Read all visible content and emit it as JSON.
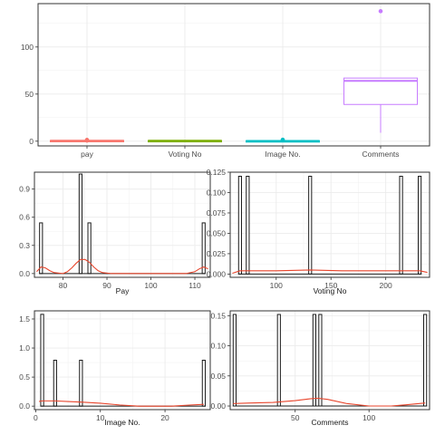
{
  "chart_data": [
    {
      "type": "boxplot",
      "categories": [
        "pay",
        "Voting No",
        "Image No.",
        "Comments"
      ],
      "colors": [
        "#f8766d",
        "#7cae00",
        "#00bfc4",
        "#c77cff"
      ],
      "boxes": [
        {
          "min": 0,
          "q1": 0.2,
          "median": 0.5,
          "q3": 0.8,
          "max": 1.1,
          "outliers": [
            0.6,
            1.1,
            1.4
          ]
        },
        {
          "min": 0.2,
          "q1": 0.3,
          "median": 0.5,
          "q3": 0.7,
          "max": 0.8,
          "outliers": []
        },
        {
          "min": 0,
          "q1": 0.1,
          "median": 0.3,
          "q3": 0.5,
          "max": 0.7,
          "outliers": [
            1.6
          ]
        },
        {
          "min": 9,
          "q1": 39,
          "median": 64,
          "q3": 67,
          "max": 67,
          "outliers": [
            138
          ]
        }
      ],
      "ylim": [
        -5,
        146
      ],
      "yticks": [
        0,
        50,
        100
      ],
      "grid": true
    },
    {
      "type": "histogram",
      "xlabel": "Pay",
      "xlim": [
        73.5,
        113.5
      ],
      "ylim": [
        -0.04,
        1.08
      ],
      "xticks": [
        80,
        90,
        100,
        110
      ],
      "yticks": [
        0.0,
        0.3,
        0.6,
        0.9
      ],
      "yticklabels": [
        "0.0",
        "0.3",
        "0.6",
        "0.9"
      ],
      "bars": [
        {
          "x": 75,
          "value": 0.54
        },
        {
          "x": 84,
          "value": 1.06
        },
        {
          "x": 86,
          "value": 0.54
        },
        {
          "x": 112,
          "value": 0.54
        }
      ],
      "density": [
        [
          74,
          0.02
        ],
        [
          75,
          0.07
        ],
        [
          76,
          0.06
        ],
        [
          77,
          0.03
        ],
        [
          78,
          0.01
        ],
        [
          80,
          0.0
        ],
        [
          81,
          0.02
        ],
        [
          82,
          0.06
        ],
        [
          83,
          0.11
        ],
        [
          84,
          0.15
        ],
        [
          85,
          0.15
        ],
        [
          86,
          0.12
        ],
        [
          87,
          0.07
        ],
        [
          88,
          0.03
        ],
        [
          89,
          0.01
        ],
        [
          91,
          0.0
        ],
        [
          108,
          0.0
        ],
        [
          110,
          0.02
        ],
        [
          111,
          0.05
        ],
        [
          112,
          0.07
        ],
        [
          113,
          0.05
        ]
      ]
    },
    {
      "type": "histogram",
      "xlabel": "Voting No",
      "xlim": [
        58,
        240
      ],
      "ylim": [
        -0.004,
        0.125
      ],
      "xticks": [
        100,
        150,
        200
      ],
      "yticks": [
        0.0,
        0.025,
        0.05,
        0.075,
        0.1,
        0.125
      ],
      "yticklabels": [
        "0.000",
        "0.025",
        "0.050",
        "0.075",
        "0.100",
        "0.125"
      ],
      "bars": [
        {
          "x": 67,
          "value": 0.12
        },
        {
          "x": 74,
          "value": 0.12
        },
        {
          "x": 131,
          "value": 0.12
        },
        {
          "x": 214,
          "value": 0.12
        },
        {
          "x": 231,
          "value": 0.12
        }
      ],
      "density": [
        [
          60,
          0.001
        ],
        [
          67,
          0.004
        ],
        [
          80,
          0.004
        ],
        [
          100,
          0.004
        ],
        [
          131,
          0.005
        ],
        [
          160,
          0.004
        ],
        [
          200,
          0.004
        ],
        [
          214,
          0.004
        ],
        [
          231,
          0.004
        ],
        [
          238,
          0.002
        ]
      ]
    },
    {
      "type": "histogram",
      "xlabel": "Image No.",
      "xlim": [
        -0.2,
        27
      ],
      "ylim": [
        -0.06,
        1.64
      ],
      "xticks": [
        0,
        10,
        20
      ],
      "yticks": [
        0.0,
        0.5,
        1.0,
        1.5
      ],
      "yticklabels": [
        "0.0",
        "0.5",
        "1.0",
        "1.5"
      ],
      "bars": [
        {
          "x": 1,
          "value": 1.58
        },
        {
          "x": 3,
          "value": 0.79
        },
        {
          "x": 7,
          "value": 0.79
        },
        {
          "x": 26,
          "value": 0.79
        }
      ],
      "density": [
        [
          0.5,
          0.08
        ],
        [
          1,
          0.09
        ],
        [
          3,
          0.09
        ],
        [
          5,
          0.08
        ],
        [
          7,
          0.07
        ],
        [
          10,
          0.05
        ],
        [
          13,
          0.02
        ],
        [
          16,
          0.0
        ],
        [
          21,
          0.0
        ],
        [
          24,
          0.02
        ],
        [
          26,
          0.03
        ]
      ]
    },
    {
      "type": "histogram",
      "xlabel": "Comments",
      "xlim": [
        6,
        141
      ],
      "ylim": [
        -0.006,
        0.158
      ],
      "xticks": [
        50,
        100
      ],
      "yticks": [
        0.0,
        0.05,
        0.1,
        0.15
      ],
      "yticklabels": [
        "0.00",
        "0.05",
        "0.10",
        "0.15"
      ],
      "bars": [
        {
          "x": 9,
          "value": 0.152
        },
        {
          "x": 39,
          "value": 0.152
        },
        {
          "x": 63,
          "value": 0.152
        },
        {
          "x": 67,
          "value": 0.152
        },
        {
          "x": 138,
          "value": 0.152
        }
      ],
      "density": [
        [
          8,
          0.004
        ],
        [
          20,
          0.005
        ],
        [
          35,
          0.006
        ],
        [
          50,
          0.009
        ],
        [
          60,
          0.012
        ],
        [
          65,
          0.013
        ],
        [
          72,
          0.011
        ],
        [
          85,
          0.004
        ],
        [
          100,
          0.0
        ],
        [
          115,
          0.0
        ],
        [
          125,
          0.002
        ],
        [
          138,
          0.005
        ]
      ]
    }
  ]
}
